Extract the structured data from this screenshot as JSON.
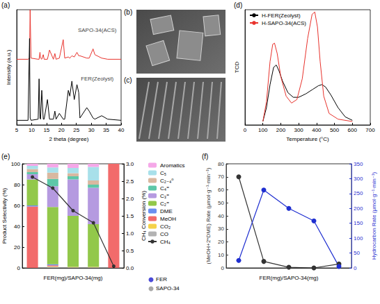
{
  "chart_data": [
    {
      "panel": "(a)",
      "type": "line",
      "xlabel": "2 theta (degree)",
      "ylabel": "Intensity (a.u.)",
      "xlim": [
        5,
        40
      ],
      "xticks": [
        5,
        10,
        15,
        20,
        25,
        30,
        35,
        40
      ],
      "ylim": [
        0,
        100
      ],
      "tick_labels": "x",
      "grid": false,
      "x": [
        5,
        8.8,
        9.3,
        9.5,
        9.8,
        12.2,
        12.5,
        12.8,
        13.0,
        13.4,
        13.9,
        14.2,
        15.3,
        16.0,
        17.3,
        17.8,
        18.2,
        19.3,
        20.6,
        21.1,
        22.3,
        22.8,
        23.5,
        24.3,
        25.2,
        25.8,
        26.2,
        28.5,
        29.3,
        30.6,
        31.2,
        33.5,
        35.5,
        40
      ],
      "series": [
        {
          "color": "#e8322c",
          "values": [
            57,
            57,
            58,
            100,
            58,
            57,
            57,
            63,
            58,
            57,
            61,
            57,
            57,
            65,
            57,
            62,
            57,
            58,
            74,
            58,
            59,
            58,
            60,
            59,
            63,
            60,
            60,
            58,
            58,
            66,
            61,
            58,
            57,
            57
          ]
        },
        {
          "color": "#000000",
          "values": [
            4,
            4,
            75,
            6,
            4,
            5,
            40,
            6,
            5,
            30,
            5,
            5,
            22,
            5,
            5,
            12,
            5,
            10,
            5,
            5,
            30,
            25,
            38,
            22,
            35,
            28,
            6,
            15,
            12,
            6,
            5,
            8,
            5,
            4
          ]
        }
      ],
      "annotations": [
        {
          "text": "SAPO-34(ACS)",
          "x": 32,
          "y": 82
        },
        {
          "text": "FER(Zeolyst)",
          "x": 32,
          "y": 40
        }
      ]
    },
    {
      "panel": "(b)",
      "type": "image"
    },
    {
      "panel": "(c)",
      "type": "image"
    },
    {
      "panel": "(d)",
      "type": "line",
      "xlabel": "Temperature (°C)",
      "ylabel": "TCD",
      "xlim": [
        0,
        700
      ],
      "xticks": [
        0,
        100,
        200,
        300,
        400,
        500,
        600,
        700
      ],
      "ylim": [
        0,
        100
      ],
      "tick_labels": "x",
      "grid": false,
      "legend": "upper left",
      "series": [
        {
          "name": "H-FER(Zeolyst)",
          "color": "#000000",
          "x": [
            100,
            120,
            140,
            160,
            175,
            190,
            210,
            240,
            270,
            300,
            340,
            380,
            410,
            430,
            450,
            480,
            520,
            560,
            600
          ],
          "values": [
            3,
            15,
            35,
            50,
            52,
            47,
            38,
            28,
            24,
            24,
            27,
            31,
            34,
            35,
            33,
            26,
            15,
            7,
            4
          ]
        },
        {
          "name": "H-SAPO-34(ACS)",
          "color": "#e8322c",
          "x": [
            100,
            120,
            140,
            155,
            165,
            180,
            200,
            230,
            260,
            290,
            320,
            350,
            375,
            390,
            405,
            420,
            440,
            470,
            520,
            600
          ],
          "values": [
            3,
            20,
            55,
            70,
            71,
            62,
            42,
            25,
            19,
            22,
            40,
            75,
            96,
            98,
            85,
            55,
            25,
            10,
            5,
            3
          ]
        }
      ]
    },
    {
      "panel": "(e)",
      "type": "bar",
      "stacked": true,
      "grid": false,
      "tick_labels": "y",
      "legend": "right",
      "xlabel": "FER(mg)/SAPO-34(mg)",
      "ylabel": "Product Selectivity (%)",
      "y2label": "CH₄ Conversion (%)",
      "categories": [
        null,
        null,
        null,
        null,
        null
      ],
      "ylim": [
        0,
        100
      ],
      "yticks": [
        0,
        20,
        40,
        60,
        80,
        100
      ],
      "y2lim": [
        0,
        3
      ],
      "y2ticks": [
        {
          "value": 0,
          "label": "0.0"
        },
        0.5,
        {
          "value": 1,
          "label": "1.0"
        },
        1.5,
        {
          "value": 2,
          "label": "2.0"
        },
        2.5,
        {
          "value": 3,
          "label": "3.0"
        }
      ],
      "series": [
        {
          "name": "CO",
          "color": "#b3b3b3",
          "values": [
            0,
            1,
            0.5,
            0.5,
            0
          ]
        },
        {
          "name": "CO₂",
          "color": "#f5d24a",
          "values": [
            0,
            0.5,
            0.5,
            0.5,
            0
          ]
        },
        {
          "name": "MeOH",
          "color": "#f26b6b",
          "values": [
            59,
            1,
            0,
            0,
            100
          ]
        },
        {
          "name": "DME",
          "color": "#6b8ff0",
          "values": [
            1,
            1,
            0,
            0,
            0
          ]
        },
        {
          "name": "C₂⁼",
          "color": "#92c84a",
          "values": [
            25,
            55,
            49,
            41,
            0
          ]
        },
        {
          "name": "C₃⁼",
          "color": "#b59ae0",
          "values": [
            5,
            20,
            35,
            35,
            0
          ]
        },
        {
          "name": "C₄⁼",
          "color": "#5dc7a8",
          "values": [
            2,
            7,
            3,
            3,
            0
          ]
        },
        {
          "name": "C₂₋₄⁰",
          "color": "#d9b8a0",
          "values": [
            3,
            6,
            3,
            4,
            0
          ]
        },
        {
          "name": "C₅",
          "color": "#a8e0ea",
          "values": [
            3,
            5,
            5,
            13,
            0
          ]
        },
        {
          "name": "Aromatics",
          "color": "#f5a8e8",
          "values": [
            2,
            3.5,
            4,
            3,
            0
          ]
        },
        {
          "name": "CH₄",
          "color": "#333333",
          "type": "line",
          "marker": "circle",
          "axis": "y2",
          "values": [
            2.62,
            2.3,
            1.65,
            1.3,
            0.05
          ]
        }
      ],
      "icon_legend": [
        {
          "name": "FER",
          "color": "#4b4bd8"
        },
        {
          "name": "SAPO-34",
          "color": "#a8a8a8"
        }
      ]
    },
    {
      "panel": "(f)",
      "type": "line",
      "grid": false,
      "tick_labels": "y",
      "xlabel": "FER(mg)/SAPO-34(mg)",
      "ylabel": "(MeOH+2*DME) Rate (μmol·g⁻¹·min⁻¹)",
      "y2label": "Hydrocarbon Rate (μmol·g⁻¹·min⁻¹)",
      "categories": [
        null,
        null,
        null,
        null,
        null
      ],
      "ylim": [
        0,
        80
      ],
      "yticks": [
        0,
        10,
        20,
        30,
        40,
        50,
        60,
        70,
        80
      ],
      "y2lim": [
        0,
        350
      ],
      "y2ticks": [
        0,
        50,
        100,
        150,
        200,
        250,
        300,
        350
      ],
      "series": [
        {
          "color": "#333333",
          "marker": "circle",
          "values": [
            70,
            5,
            0.5,
            0,
            3
          ]
        },
        {
          "color": "#1f2fd0",
          "marker": "circle",
          "axis": "y2",
          "values": [
            25,
            262,
            200,
            158,
            5
          ]
        }
      ]
    }
  ]
}
